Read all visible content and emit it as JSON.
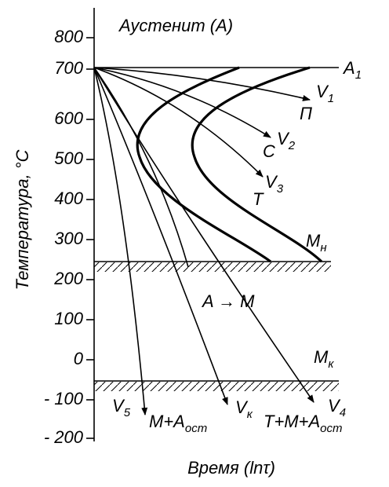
{
  "title": "Аустенит (А)",
  "axis": {
    "label": "Температура, °С",
    "ticks": [
      "800",
      "700",
      "600",
      "500",
      "400",
      "300",
      "200",
      "100",
      "0",
      "- 100",
      "- 200"
    ],
    "x_label": "Время (lnτ)"
  },
  "labels": [
    {
      "text": "A",
      "sub": "1"
    },
    {
      "text": "V",
      "sub": "1"
    },
    {
      "text": "П",
      "sub": ""
    },
    {
      "text": "V",
      "sub": "2"
    },
    {
      "text": "С",
      "sub": ""
    },
    {
      "text": "V",
      "sub": "3"
    },
    {
      "text": "Т",
      "sub": ""
    },
    {
      "text": "M",
      "sub": "н"
    },
    {
      "text": "A → M",
      "sub": ""
    },
    {
      "text": "M",
      "sub": "к"
    },
    {
      "text": "V",
      "sub": "5"
    },
    {
      "text": "M+A",
      "sub": "ост"
    },
    {
      "text": "V",
      "sub": "к"
    },
    {
      "text": "T+M+A",
      "sub": "ост"
    },
    {
      "text": "V",
      "sub": "4"
    }
  ]
}
